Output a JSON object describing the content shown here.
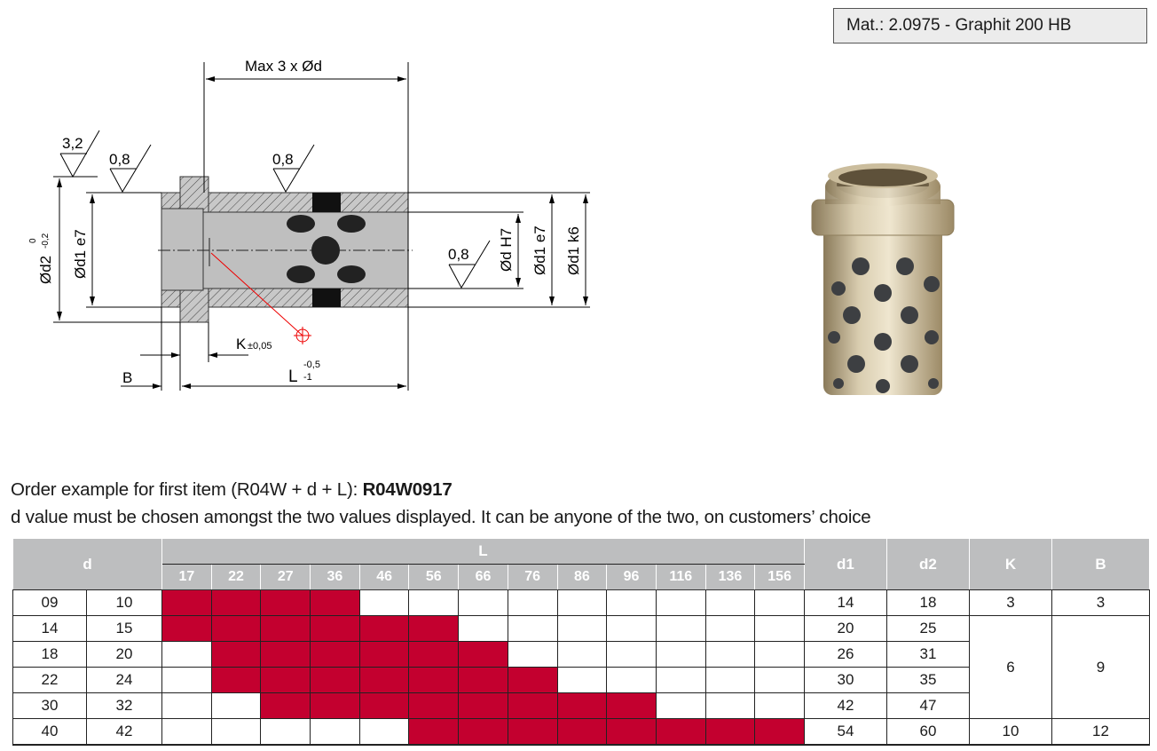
{
  "material": "Mat.: 2.0975 - Graphit 200 HB",
  "drawing": {
    "max_length": "Max 3 x Ød",
    "roughness_flange": "3,2",
    "roughness_outer_left": "0,8",
    "roughness_outer": "0,8",
    "roughness_bore": "0,8",
    "d2_label": "Ød2",
    "d2_tol_upper": "0",
    "d2_tol_lower": "-0,2",
    "d1_e7_left": "Ød1 e7",
    "d_h7": "Ød H7",
    "d1_e7_right": "Ød1 e7",
    "d1_k6": "Ød1 k6",
    "k_label": "K",
    "k_tol": "±0,05",
    "b_label": "B",
    "l_label": "L",
    "l_tol_upper": "-0,5",
    "l_tol_lower": "-1"
  },
  "order": {
    "line1_prefix": "Order example for first item (R04W + d + L): ",
    "line1_code": "R04W0917",
    "line2": "d value must be chosen amongst the two values displayed. It can be anyone of the two, on customers’ choice"
  },
  "colors": {
    "available": "#c3002f",
    "header": "#bdbebf"
  },
  "table": {
    "headers": {
      "d": "d",
      "L": "L",
      "d1": "d1",
      "d2": "d2",
      "K": "K",
      "B": "B"
    },
    "L_values": [
      "17",
      "22",
      "27",
      "36",
      "46",
      "56",
      "66",
      "76",
      "86",
      "96",
      "116",
      "136",
      "156"
    ],
    "rows": [
      {
        "d": [
          "09",
          "10"
        ],
        "available_L": [
          "17",
          "22",
          "27",
          "36"
        ],
        "d1": "14",
        "d2": "18"
      },
      {
        "d": [
          "14",
          "15"
        ],
        "available_L": [
          "17",
          "22",
          "27",
          "36",
          "46",
          "56"
        ],
        "d1": "20",
        "d2": "25"
      },
      {
        "d": [
          "18",
          "20"
        ],
        "available_L": [
          "22",
          "27",
          "36",
          "46",
          "56",
          "66"
        ],
        "d1": "26",
        "d2": "31"
      },
      {
        "d": [
          "22",
          "24"
        ],
        "available_L": [
          "22",
          "27",
          "36",
          "46",
          "56",
          "66",
          "76"
        ],
        "d1": "30",
        "d2": "35"
      },
      {
        "d": [
          "30",
          "32"
        ],
        "available_L": [
          "27",
          "36",
          "46",
          "56",
          "66",
          "76",
          "86",
          "96"
        ],
        "d1": "42",
        "d2": "47"
      },
      {
        "d": [
          "40",
          "42"
        ],
        "available_L": [
          "56",
          "66",
          "76",
          "86",
          "96",
          "116",
          "136",
          "156"
        ],
        "d1": "54",
        "d2": "60"
      }
    ],
    "KB_groups": [
      {
        "rows": 1,
        "K": "3",
        "B": "3"
      },
      {
        "rows": 4,
        "K": "6",
        "B": "9"
      },
      {
        "rows": 1,
        "K": "10",
        "B": "12"
      }
    ]
  }
}
